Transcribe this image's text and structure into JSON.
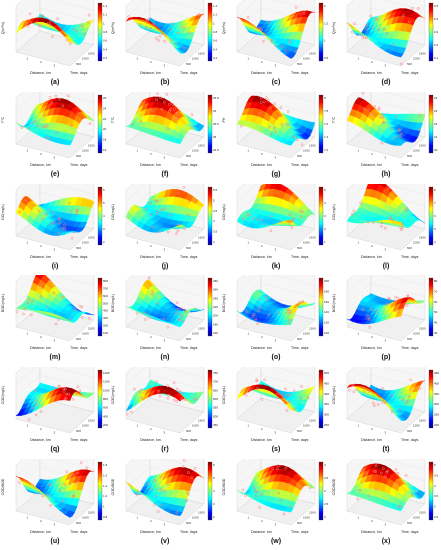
{
  "colormap": [
    "#00008f",
    "#0000ff",
    "#007fff",
    "#00ffff",
    "#7fff7f",
    "#ffff00",
    "#ff7f00",
    "#ff0000",
    "#7f0000"
  ],
  "scatter_color": "#ff8080",
  "axis_common": {
    "xlabel": "Distance, km",
    "ylabel": "Time, days",
    "time_ticks": [
      "500",
      "1000",
      "1500"
    ],
    "dist_ticks": [
      "1",
      "2",
      "3"
    ]
  },
  "chart_data": [
    {
      "type": "surface",
      "label": "(a)",
      "zlabel": "Q(m³/s)",
      "colorbar_ticks": [
        "1.4",
        "1.2",
        "1",
        "0.8",
        "0.6",
        "0.4",
        "0.2"
      ]
    },
    {
      "type": "surface",
      "label": "(b)",
      "zlabel": "Q(m³/s)",
      "colorbar_ticks": [
        "1.4",
        "1.2",
        "1",
        "0.8",
        "0.6",
        "0.4",
        "0.2"
      ]
    },
    {
      "type": "surface",
      "label": "(c)",
      "zlabel": "Q(m³/s)",
      "colorbar_ticks": [
        "2",
        "1.5",
        "1",
        "0.5"
      ]
    },
    {
      "type": "surface",
      "label": "(d)",
      "zlabel": "Q(m³/s)",
      "colorbar_ticks": [
        "0.5",
        "0.4",
        "0.3",
        "0.2",
        "0.1"
      ]
    },
    {
      "type": "surface",
      "label": "(e)",
      "zlabel": "T°C",
      "colorbar_ticks": [
        "26",
        "24",
        "22",
        "20",
        "18",
        "16"
      ]
    },
    {
      "type": "surface",
      "label": "(f)",
      "zlabel": "T°C",
      "colorbar_ticks": [
        "26.5",
        "26",
        "25.5",
        "25",
        "24.5"
      ]
    },
    {
      "type": "surface",
      "label": "(g)",
      "zlabel": "PH",
      "colorbar_ticks": [
        "8",
        "7.8",
        "7.6",
        "7.4",
        "7.2"
      ]
    },
    {
      "type": "surface",
      "label": "(h)",
      "zlabel": "T°C",
      "colorbar_ticks": [
        "24",
        "23",
        "22",
        "21",
        "20"
      ]
    },
    {
      "type": "surface",
      "label": "(i)",
      "zlabel": "DO(mg/L)",
      "colorbar_ticks": [
        "6",
        "5",
        "4",
        "3",
        "2"
      ]
    },
    {
      "type": "surface",
      "label": "(j)",
      "zlabel": "DO(mg/L)",
      "colorbar_ticks": [
        "5.5",
        "5",
        "4.5",
        "4",
        "3.5",
        "3"
      ]
    },
    {
      "type": "surface",
      "label": "(k)",
      "zlabel": "DO(mg/L)",
      "colorbar_ticks": [
        "5",
        "4",
        "3",
        "2",
        "1"
      ]
    },
    {
      "type": "surface",
      "label": "(l)",
      "zlabel": "DO(mg/L)",
      "colorbar_ticks": [
        "8",
        "7",
        "6",
        "5",
        "4"
      ]
    },
    {
      "type": "surface",
      "label": "(m)",
      "zlabel": "BOD(mg/L)",
      "colorbar_ticks": [
        "800",
        "700",
        "600",
        "500",
        "400",
        "300",
        "200",
        "100"
      ]
    },
    {
      "type": "surface",
      "label": "(n)",
      "zlabel": "BOD(mg/L)",
      "colorbar_ticks": [
        "280",
        "260",
        "240",
        "220",
        "200",
        "180",
        "160"
      ]
    },
    {
      "type": "surface",
      "label": "(o)",
      "zlabel": "BOD(mg/L)",
      "colorbar_ticks": [
        "200",
        "180",
        "160",
        "140",
        "120",
        "100"
      ]
    },
    {
      "type": "surface",
      "label": "(p)",
      "zlabel": "BOD(mg/L)",
      "colorbar_ticks": [
        "80",
        "70",
        "60",
        "50",
        "40",
        "30"
      ]
    },
    {
      "type": "surface",
      "label": "(q)",
      "zlabel": "COD(mg/L)",
      "colorbar_ticks": [
        "1400",
        "1200",
        "1000",
        "800",
        "600",
        "400",
        "200"
      ]
    },
    {
      "type": "surface",
      "label": "(r)",
      "zlabel": "COD(mg/L)",
      "colorbar_ticks": [
        "750",
        "700",
        "650",
        "600",
        "550",
        "500",
        "450"
      ]
    },
    {
      "type": "surface",
      "label": "(s)",
      "zlabel": "COD(mg/L)",
      "colorbar_ticks": [
        "500",
        "450",
        "400",
        "350",
        "300",
        "250"
      ]
    },
    {
      "type": "surface",
      "label": "(t)",
      "zlabel": "COD(mg/L)",
      "colorbar_ticks": [
        "450",
        "400",
        "350",
        "300",
        "250",
        "200"
      ]
    },
    {
      "type": "surface",
      "label": "(u)",
      "zlabel": "COD/BOD",
      "colorbar_ticks": [
        "1.8",
        "1.6",
        "1.4",
        "1.2",
        "1",
        "0.8"
      ]
    },
    {
      "type": "surface",
      "label": "(v)",
      "zlabel": "COD/BOD",
      "colorbar_ticks": [
        "6",
        "5",
        "4",
        "3",
        "2"
      ]
    },
    {
      "type": "surface",
      "label": "(w)",
      "zlabel": "COD/BOD",
      "colorbar_ticks": [
        "4",
        "3.5",
        "3",
        "2.5",
        "2"
      ]
    },
    {
      "type": "surface",
      "label": "(x)",
      "zlabel": "COD/BOD",
      "colorbar_ticks": [
        "5",
        "4.5",
        "4",
        "3.5",
        "3",
        "2.5"
      ]
    }
  ]
}
